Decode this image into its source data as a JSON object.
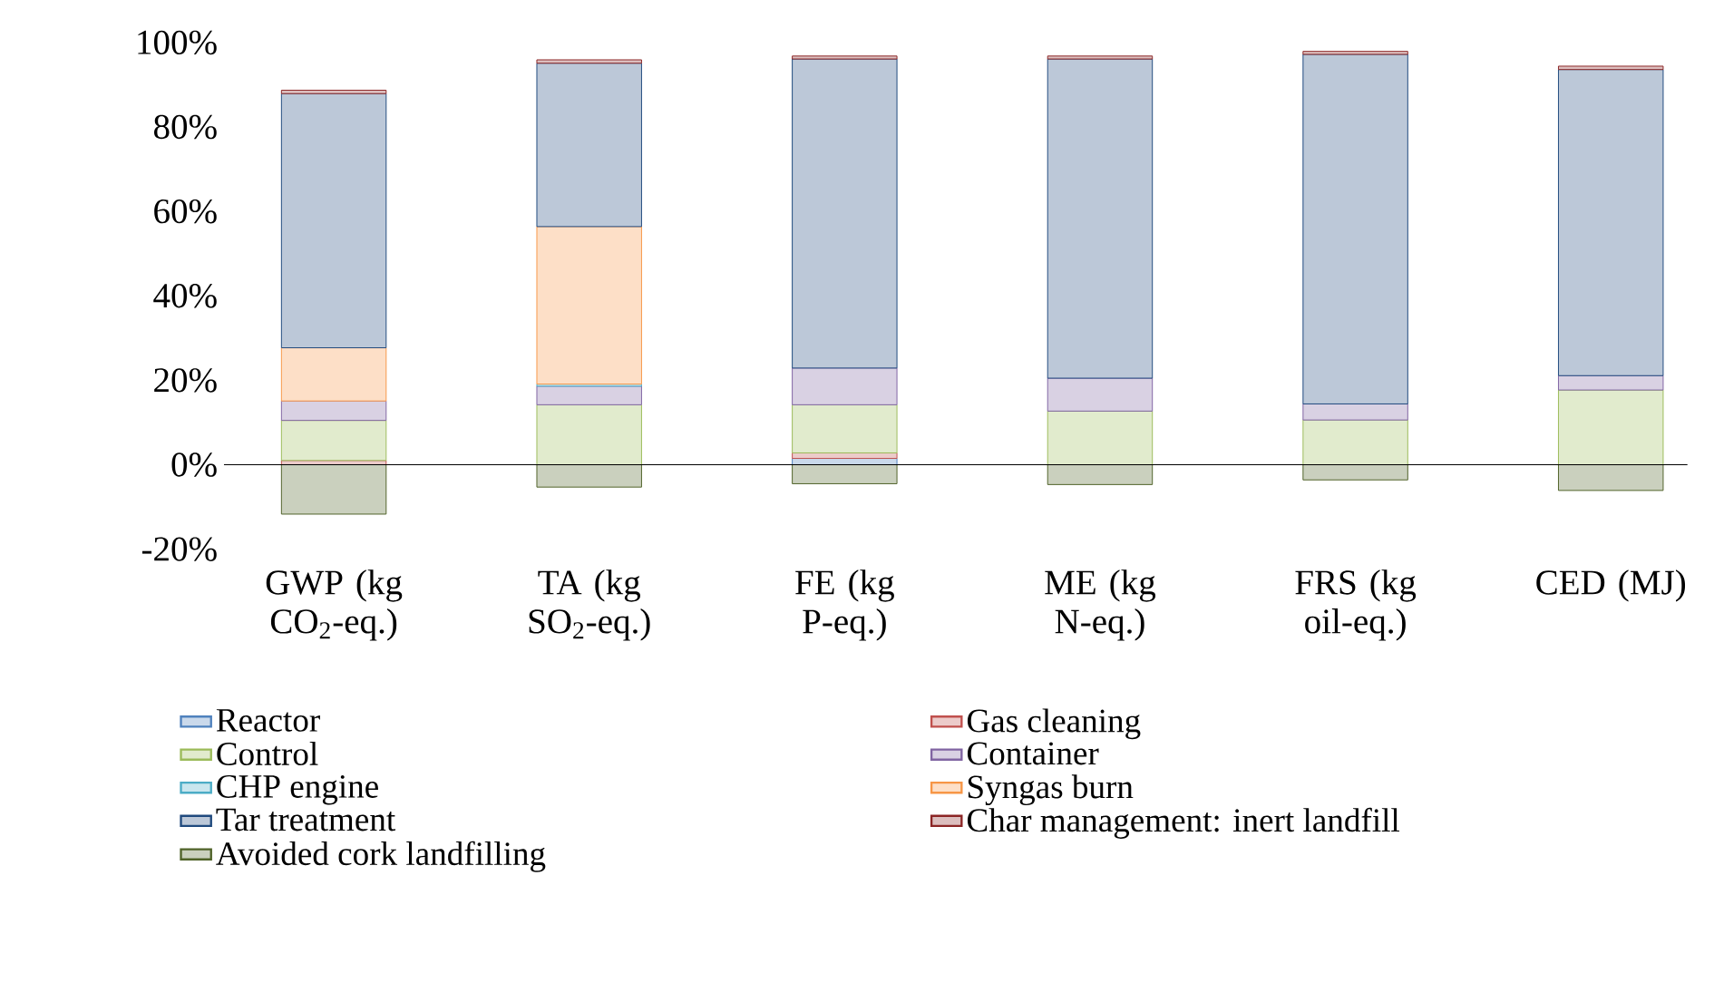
{
  "chart_data": {
    "type": "bar",
    "stacked": true,
    "legend": "bottom",
    "categories": [
      "GWP (kg CO$_{2}$-eq.)",
      "TA (kg SO$_{2}$-eq.)",
      "FE (kg P-eq.)",
      "ME (kg N-eq.)",
      "FRS (kg oil-eq.)",
      "CED (MJ)"
    ],
    "ylim": [
      -20,
      100
    ],
    "yticks": [
      {
        "value": -20,
        "label": "-20%"
      },
      {
        "value": 0,
        "label": "0%"
      },
      {
        "value": 20,
        "label": "20%"
      },
      {
        "value": 40,
        "label": "40%"
      },
      {
        "value": 60,
        "label": "60%"
      },
      {
        "value": 80,
        "label": "80%"
      },
      {
        "value": 100,
        "label": "100%"
      }
    ],
    "series": [
      {
        "name": "Reactor",
        "color": "#4f81bd",
        "values": [
          null,
          0,
          1.5,
          0,
          0,
          0
        ]
      },
      {
        "name": "Gas cleaning",
        "color": "#c0504d",
        "values": [
          1,
          0,
          1.3,
          0,
          0,
          0
        ]
      },
      {
        "name": "Control",
        "color": "#9bbb59",
        "values": [
          9.5,
          14.2,
          11.4,
          12.7,
          10.6,
          17.7
        ]
      },
      {
        "name": "Container",
        "color": "#8064a2",
        "values": [
          4.6,
          4.4,
          8.7,
          7.8,
          3.8,
          3.4
        ]
      },
      {
        "name": "CHP engine",
        "color": "#4bacc6",
        "values": [
          0,
          0.5,
          0,
          0,
          0,
          0
        ]
      },
      {
        "name": "Syngas burn",
        "color": "#f79646",
        "values": [
          12.6,
          37.3,
          0,
          0,
          0,
          0
        ]
      },
      {
        "name": "Tar treatment",
        "color": "#1f497d",
        "values": [
          60.2,
          38.7,
          73.2,
          75.6,
          82.8,
          72.5
        ]
      },
      {
        "name": "Char management: inert landfill",
        "color": "#8b2525",
        "values": [
          0.8,
          0.8,
          0.7,
          0.7,
          0.7,
          0.8
        ]
      },
      {
        "name": "Avoided cork landfilling",
        "color": "#4f6228",
        "values": [
          -11.7,
          -5.3,
          -4.5,
          -4.7,
          -3.6,
          -6.1
        ]
      }
    ]
  }
}
